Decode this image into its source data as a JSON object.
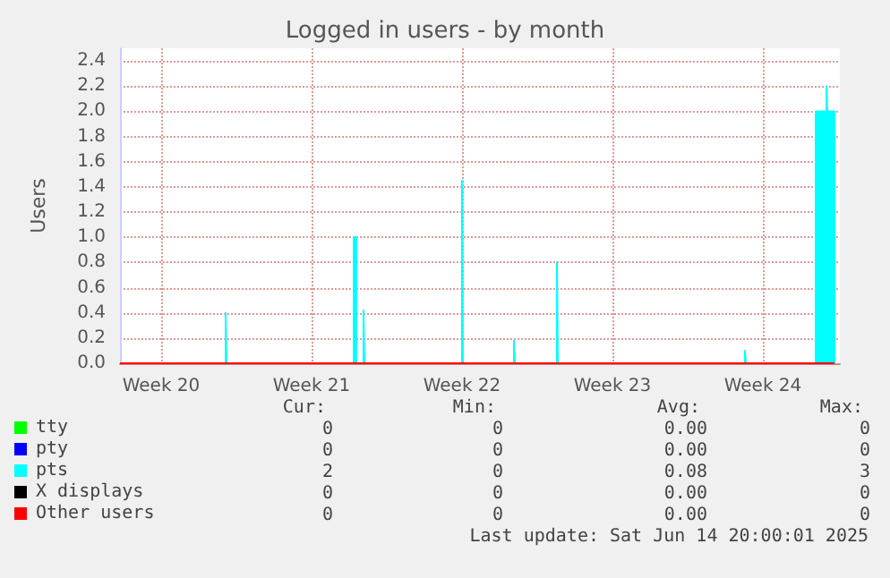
{
  "chart_data": {
    "type": "area",
    "title": "Logged in users - by month",
    "ylabel": "Users",
    "xlim": [
      "2025-05-12T14:00",
      "2025-06-15T02:00"
    ],
    "xticks": [
      {
        "value": "2025-05-14T12:00",
        "label": "Week 20"
      },
      {
        "value": "2025-05-21T12:00",
        "label": "Week 21"
      },
      {
        "value": "2025-05-28T12:00",
        "label": "Week 22"
      },
      {
        "value": "2025-06-04T12:00",
        "label": "Week 23"
      },
      {
        "value": "2025-06-11T12:00",
        "label": "Week 24"
      }
    ],
    "ylim": [
      0,
      2.5
    ],
    "yticks": [
      {
        "value": 0,
        "label": "0.0"
      },
      {
        "value": 0.2,
        "label": "0.2"
      },
      {
        "value": 0.4,
        "label": "0.4"
      },
      {
        "value": 0.6,
        "label": "0.6"
      },
      {
        "value": 0.8,
        "label": "0.8"
      },
      {
        "value": 1,
        "label": "1.0"
      },
      {
        "value": 1.2,
        "label": "1.2"
      },
      {
        "value": 1.4,
        "label": "1.4"
      },
      {
        "value": 1.6,
        "label": "1.6"
      },
      {
        "value": 1.8,
        "label": "1.8"
      },
      {
        "value": 2,
        "label": "2.0"
      },
      {
        "value": 2.2,
        "label": "2.2"
      },
      {
        "value": 2.4,
        "label": "2.4"
      }
    ],
    "grid": true,
    "legend": "bottom left",
    "series": [
      {
        "name": "tty",
        "color": "#00ff00",
        "type": "line"
      },
      {
        "name": "pty",
        "color": "#0000ff",
        "type": "line"
      },
      {
        "name": "pts",
        "color": "#00ffff",
        "x": [
          "2025-05-12T14:00",
          "2025-05-17T12:00",
          "2025-05-17T12:00",
          "2025-05-17T13:00",
          "2025-05-17T13:00",
          "2025-05-23T11:00",
          "2025-05-23T11:00",
          "2025-05-23T14:00",
          "2025-05-23T14:00",
          "2025-05-23T22:00",
          "2025-05-23T22:00",
          "2025-05-23T23:00",
          "2025-05-23T23:00",
          "2025-05-28T12:00",
          "2025-05-28T12:00",
          "2025-05-28T13:00",
          "2025-05-28T13:00",
          "2025-05-30T22:00",
          "2025-05-30T22:00",
          "2025-05-30T23:00",
          "2025-05-30T23:00",
          "2025-06-01T22:00",
          "2025-06-01T22:00",
          "2025-06-01T23:00",
          "2025-06-01T23:00",
          "2025-06-10T16:00",
          "2025-06-10T16:00",
          "2025-06-10T17:00",
          "2025-06-10T17:00",
          "2025-06-13T23:00",
          "2025-06-13T23:00",
          "2025-06-14T11:00",
          "2025-06-14T11:00",
          "2025-06-14T12:00",
          "2025-06-14T12:00",
          "2025-06-14T20:00",
          "2025-06-14T20:00"
        ],
        "values": [
          0,
          0,
          0.4,
          0.4,
          0,
          0,
          1.0,
          1.0,
          0,
          0,
          0.42,
          0.42,
          0,
          0,
          1.45,
          1.45,
          0,
          0,
          0.18,
          0.18,
          0,
          0,
          0.8,
          0.8,
          0,
          0,
          0.1,
          0.1,
          0,
          0,
          2.0,
          2.0,
          2.2,
          2.2,
          2.0,
          2.0,
          0
        ]
      },
      {
        "name": "X displays",
        "color": "#000000",
        "type": "line"
      },
      {
        "name": "Other users",
        "color": "#ff0000",
        "type": "line",
        "x": [
          "2025-05-12T14:00",
          "2025-06-14T20:00"
        ],
        "values": [
          0,
          0
        ]
      }
    ],
    "annotations": [
      "Cur:",
      "Min:",
      "Avg:",
      "Max:",
      "0",
      "0",
      "0.00",
      "0",
      "0",
      "0",
      "0.00",
      "0",
      "2",
      "0",
      "0.08",
      "3",
      "0",
      "0",
      "0.00",
      "0",
      "0",
      "0",
      "0.00",
      "0",
      "Last update: Sat Jun 14 20:00:01 2025"
    ]
  }
}
